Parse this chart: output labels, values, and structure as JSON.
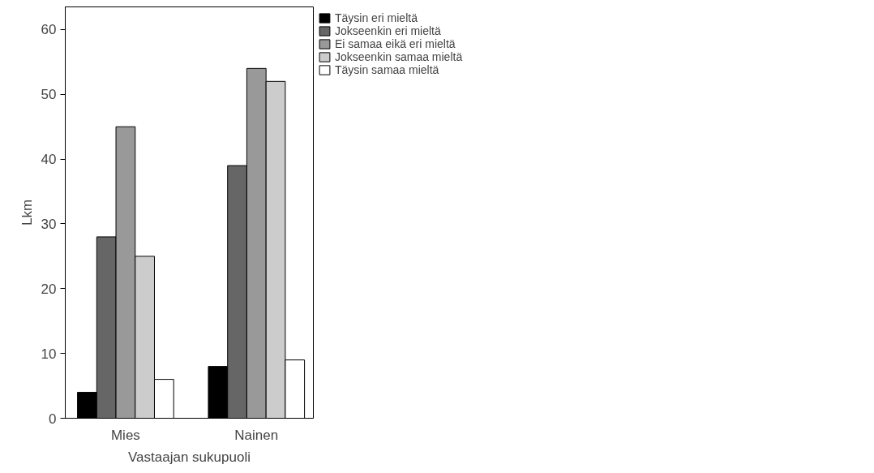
{
  "chart_data": {
    "type": "bar",
    "xlabel": "Vastaajan sukupuoli",
    "ylabel": "Lkm",
    "categories": [
      "Mies",
      "Nainen"
    ],
    "series": [
      {
        "name": "Täysin eri mieltä",
        "color": "#000000",
        "values": [
          4,
          8
        ]
      },
      {
        "name": "Jokseenkin eri mieltä",
        "color": "#666666",
        "values": [
          28,
          39
        ]
      },
      {
        "name": "Ei samaa eikä eri mieltä",
        "color": "#999999",
        "values": [
          45,
          54
        ]
      },
      {
        "name": "Jokseenkin samaa mieltä",
        "color": "#cccccc",
        "values": [
          25,
          52
        ]
      },
      {
        "name": "Täysin samaa mieltä",
        "color": "#ffffff",
        "values": [
          6,
          9
        ]
      }
    ],
    "ylim": [
      0,
      63.5
    ],
    "yticks": [
      0,
      10,
      20,
      30,
      40,
      50,
      60
    ],
    "grid": false,
    "legend": "right"
  }
}
